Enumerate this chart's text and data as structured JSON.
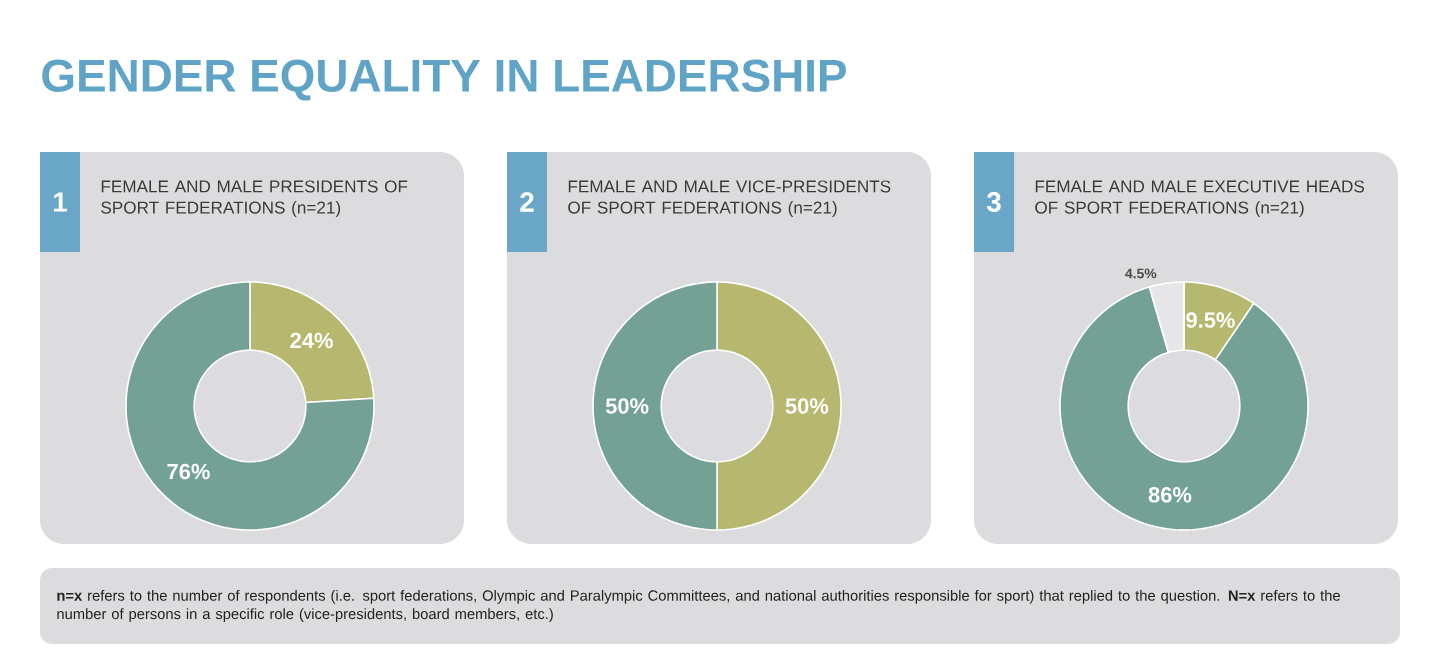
{
  "chart_data": [
    {
      "type": "other",
      "title": "GENDER EQUALITY IN LEADERSHIP",
      "annotations": [
        "**n=x** refers to the number of respondents (i.e. sport federations, Olympic and Paralympic Committees, and national authorities responsible for sport) that replied to the question. **N=x** refers to the number of persons in a specific role (vice-presidents, board members, etc.)"
      ]
    },
    {
      "type": "donut",
      "title": "FEMALE AND MALE PRESIDENTS OF SPORT FEDERATIONS (n=21)",
      "annotations": [
        "1"
      ],
      "categories": [
        null,
        null
      ],
      "values": [
        24,
        76
      ],
      "colors": [
        "#b5b86e",
        "#74a196"
      ],
      "value_labels": [
        "24%",
        "76%"
      ]
    },
    {
      "type": "donut",
      "title": "FEMALE AND MALE VICE-PRESIDENTS OF SPORT FEDERATIONS (n=21)",
      "annotations": [
        "2"
      ],
      "categories": [
        null,
        null
      ],
      "values": [
        50,
        50
      ],
      "colors": [
        "#b5b86e",
        "#74a196"
      ],
      "value_labels": [
        "50%",
        "50%"
      ]
    },
    {
      "type": "donut",
      "title": "FEMALE AND MALE EXECUTIVE HEADS OF SPORT FEDERATIONS (n=21)",
      "annotations": [
        "3"
      ],
      "categories": [
        null,
        null,
        null
      ],
      "values": [
        9.5,
        86,
        4.5
      ],
      "colors": [
        "#b5b86e",
        "#74a196",
        "#e6e6e8"
      ],
      "value_labels": [
        "9.5%",
        "86%",
        "4.5%"
      ]
    }
  ]
}
